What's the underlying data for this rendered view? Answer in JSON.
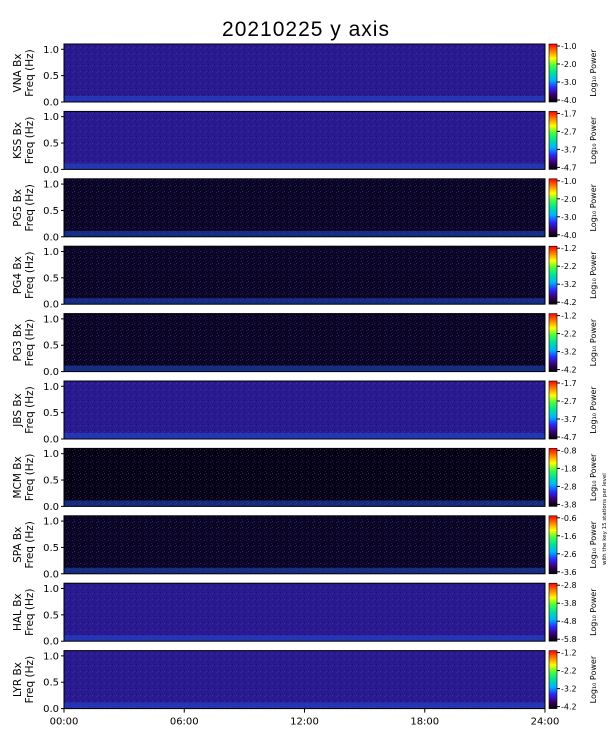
{
  "title": "20210225 y axis",
  "side_note": "with the key 15 stations per level",
  "chart_data": {
    "type": "heatmap",
    "title": "20210225 y axis",
    "xlabel": "",
    "x_tick_labels": [
      "00:00",
      "06:00",
      "12:00",
      "18:00",
      "24:00"
    ],
    "x_range_hours": [
      0,
      24
    ],
    "y_range_hz": [
      0,
      1.1
    ],
    "y_tick_labels": [
      "0.0",
      "0.5",
      "1.0"
    ],
    "colorbar_label": "Log₁₀ Power",
    "colormap": [
      "#000000",
      "#3a0070",
      "#2a2aff",
      "#00b4ff",
      "#00e0a0",
      "#40ff40",
      "#ffff00",
      "#ff8000",
      "#ff0000"
    ],
    "panels": [
      {
        "station": "VNA Bx",
        "ylabel": "Freq (Hz)",
        "cbar_ticks": [
          "-1.0",
          "-2.0",
          "-3.0",
          "-4.0"
        ],
        "background": "#2a1a90"
      },
      {
        "station": "KSS Bx",
        "ylabel": "Freq (Hz)",
        "cbar_ticks": [
          "-1.7",
          "-2.7",
          "-3.7",
          "-4.7"
        ],
        "background": "#2a1a90"
      },
      {
        "station": "PG5 Bx",
        "ylabel": "Freq (Hz)",
        "cbar_ticks": [
          "-1.0",
          "-2.0",
          "-3.0",
          "-4.0"
        ],
        "background": "#0a0520"
      },
      {
        "station": "PG4 Bx",
        "ylabel": "Freq (Hz)",
        "cbar_ticks": [
          "-1.2",
          "-2.2",
          "-3.2",
          "-4.2"
        ],
        "background": "#0a0520"
      },
      {
        "station": "PG3 Bx",
        "ylabel": "Freq (Hz)",
        "cbar_ticks": [
          "-1.2",
          "-2.2",
          "-3.2",
          "-4.2"
        ],
        "background": "#0a0520"
      },
      {
        "station": "JBS Bx",
        "ylabel": "Freq (Hz)",
        "cbar_ticks": [
          "-1.7",
          "-2.7",
          "-3.7",
          "-4.7"
        ],
        "background": "#2a1a90"
      },
      {
        "station": "MCM Bx",
        "ylabel": "Freq (Hz)",
        "cbar_ticks": [
          "-0.8",
          "-1.8",
          "-2.8",
          "-3.8"
        ],
        "background": "#050210"
      },
      {
        "station": "SPA Bx",
        "ylabel": "Freq (Hz)",
        "cbar_ticks": [
          "-0.6",
          "-1.6",
          "-2.6",
          "-3.6"
        ],
        "background": "#0a0520"
      },
      {
        "station": "HAL Bx",
        "ylabel": "Freq (Hz)",
        "cbar_ticks": [
          "-2.8",
          "-3.8",
          "-4.8",
          "-5.8"
        ],
        "background": "#2a1a90"
      },
      {
        "station": "LYR Bx",
        "ylabel": "Freq (Hz)",
        "cbar_ticks": [
          "-1.2",
          "-2.2",
          "-3.2",
          "-4.2"
        ],
        "background": "#2a1a90"
      }
    ]
  }
}
